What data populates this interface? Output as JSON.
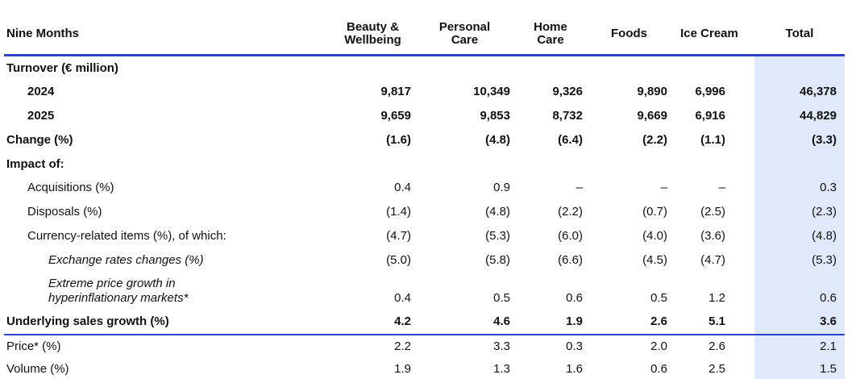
{
  "table": {
    "title": "Nine Months",
    "columns": [
      "Beauty &\nWellbeing",
      "Personal\nCare",
      "Home\nCare",
      "Foods",
      "Ice Cream",
      "Total"
    ],
    "sections": [
      {
        "rows": [
          {
            "label": "Turnover (€ million)",
            "style": "bold",
            "indent": 0,
            "values": [
              "",
              "",
              "",
              "",
              "",
              ""
            ]
          },
          {
            "label": "2024",
            "style": "bold",
            "indent": 1,
            "values": [
              "9,817",
              "10,349",
              "9,326",
              "9,890",
              "6,996",
              "46,378"
            ]
          },
          {
            "label": "2025",
            "style": "bold",
            "indent": 1,
            "values": [
              "9,659",
              "9,853",
              "8,732",
              "9,669",
              "6,916",
              "44,829"
            ]
          },
          {
            "label": "Change (%)",
            "style": "bold",
            "indent": 0,
            "values": [
              "(1.6)",
              "(4.8)",
              "(6.4)",
              "(2.2)",
              "(1.1)",
              "(3.3)"
            ]
          },
          {
            "label": "Impact of:",
            "style": "bold",
            "indent": 0,
            "values": [
              "",
              "",
              "",
              "",
              "",
              ""
            ]
          },
          {
            "label": "Acquisitions (%)",
            "style": "regular",
            "indent": 1,
            "values": [
              "0.4",
              "0.9",
              "–",
              "–",
              "–",
              "0.3"
            ]
          },
          {
            "label": "Disposals (%)",
            "style": "regular",
            "indent": 1,
            "values": [
              "(1.4)",
              "(4.8)",
              "(2.2)",
              "(0.7)",
              "(2.5)",
              "(2.3)"
            ]
          },
          {
            "label": "Currency-related items (%), of which:",
            "style": "regular",
            "indent": 1,
            "values": [
              "(4.7)",
              "(5.3)",
              "(6.0)",
              "(4.0)",
              "(3.6)",
              "(4.8)"
            ]
          },
          {
            "label": "Exchange rates changes (%)",
            "style": "italic",
            "indent": 2,
            "values": [
              "(5.0)",
              "(5.8)",
              "(6.6)",
              "(4.5)",
              "(4.7)",
              "(5.3)"
            ]
          },
          {
            "label": "Extreme price growth in\nhyperinflationary markets*",
            "style": "italic",
            "indent": 2,
            "values": [
              "0.4",
              "0.5",
              "0.6",
              "0.5",
              "1.2",
              "0.6"
            ]
          },
          {
            "label": "Underlying sales growth (%)",
            "style": "bold",
            "indent": 0,
            "values": [
              "4.2",
              "4.6",
              "1.9",
              "2.6",
              "5.1",
              "3.6"
            ]
          }
        ]
      },
      {
        "rows": [
          {
            "label": "Price* (%)",
            "style": "regular",
            "indent": 0,
            "values": [
              "2.2",
              "3.3",
              "0.3",
              "2.0",
              "2.6",
              "2.1"
            ]
          },
          {
            "label": "Volume (%)",
            "style": "regular",
            "indent": 0,
            "values": [
              "1.9",
              "1.3",
              "1.6",
              "0.6",
              "2.5",
              "1.5"
            ]
          }
        ]
      }
    ]
  },
  "colors": {
    "accent_blue": "#2e41cb",
    "total_highlight": "#dfe9fa",
    "text": "#111111"
  }
}
